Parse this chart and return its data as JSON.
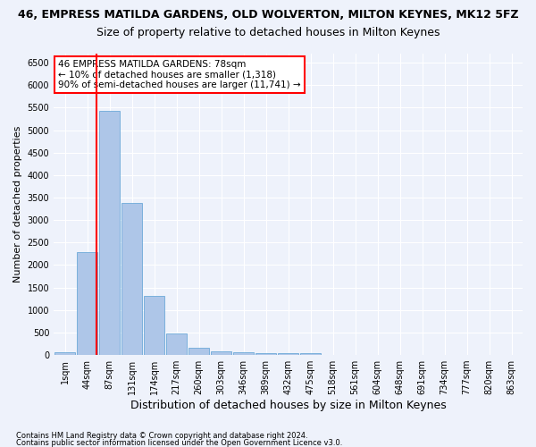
{
  "title_line1": "46, EMPRESS MATILDA GARDENS, OLD WOLVERTON, MILTON KEYNES, MK12 5FZ",
  "title_line2": "Size of property relative to detached houses in Milton Keynes",
  "xlabel": "Distribution of detached houses by size in Milton Keynes",
  "ylabel": "Number of detached properties",
  "footer_line1": "Contains HM Land Registry data © Crown copyright and database right 2024.",
  "footer_line2": "Contains public sector information licensed under the Open Government Licence v3.0.",
  "annotation_line1": "46 EMPRESS MATILDA GARDENS: 78sqm",
  "annotation_line2": "← 10% of detached houses are smaller (1,318)",
  "annotation_line3": "90% of semi-detached houses are larger (11,741) →",
  "bar_color": "#aec6e8",
  "bar_edge_color": "#5a9fd4",
  "marker_color": "red",
  "marker_bin_index": 1.4,
  "categories": [
    "1sqm",
    "44sqm",
    "87sqm",
    "131sqm",
    "174sqm",
    "217sqm",
    "260sqm",
    "303sqm",
    "346sqm",
    "389sqm",
    "432sqm",
    "475sqm",
    "518sqm",
    "561sqm",
    "604sqm",
    "648sqm",
    "691sqm",
    "734sqm",
    "777sqm",
    "820sqm",
    "863sqm"
  ],
  "values": [
    70,
    2280,
    5420,
    3380,
    1310,
    480,
    160,
    75,
    60,
    50,
    45,
    45,
    0,
    0,
    0,
    0,
    0,
    0,
    0,
    0,
    0
  ],
  "ylim": [
    0,
    6700
  ],
  "yticks": [
    0,
    500,
    1000,
    1500,
    2000,
    2500,
    3000,
    3500,
    4000,
    4500,
    5000,
    5500,
    6000,
    6500
  ],
  "bg_color": "#eef2fb",
  "grid_color": "#ffffff",
  "title1_fontsize": 9,
  "title2_fontsize": 9,
  "ylabel_fontsize": 8,
  "xlabel_fontsize": 9,
  "tick_fontsize": 7,
  "annotation_fontsize": 7.5,
  "annotation_box_color": "white",
  "annotation_box_edge": "red"
}
